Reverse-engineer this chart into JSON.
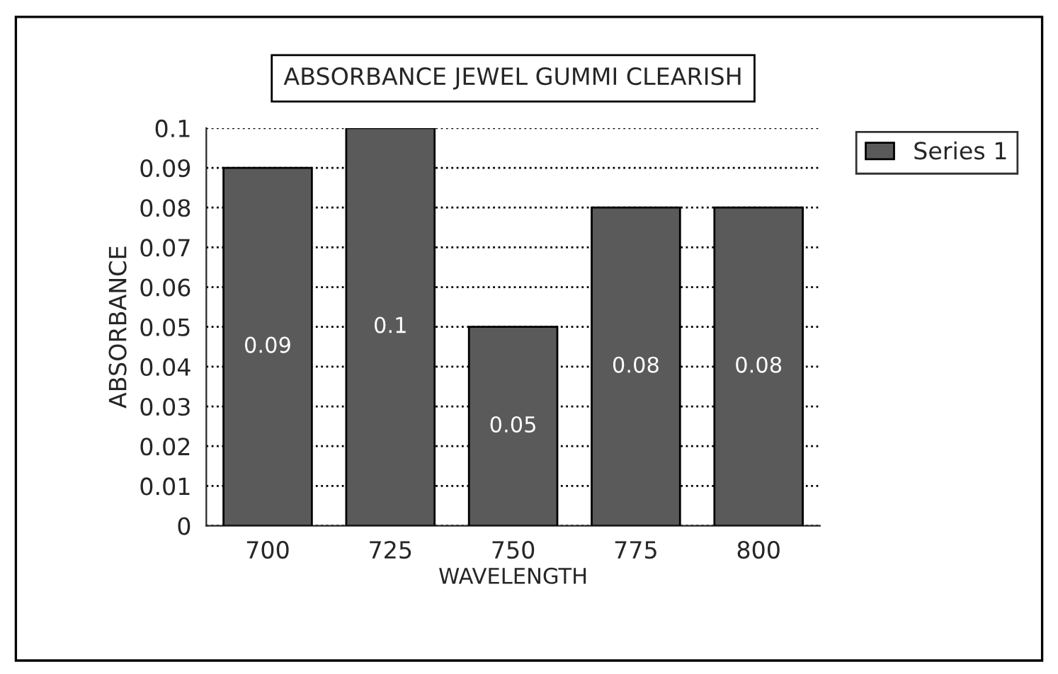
{
  "chart_data": {
    "type": "bar",
    "title": "ABSORBANCE JEWEL GUMMI CLEARISH",
    "xlabel": "WAVELENGTH",
    "ylabel": "ABSORBANCE",
    "categories": [
      "700",
      "725",
      "750",
      "775",
      "800"
    ],
    "series": [
      {
        "name": "Series 1",
        "color": "#5a5a5a",
        "values": [
          0.09,
          0.1,
          0.05,
          0.08,
          0.08
        ]
      }
    ],
    "ylim": [
      0,
      0.1
    ],
    "yticks": [
      0,
      0.01,
      0.02,
      0.03,
      0.04,
      0.05,
      0.06,
      0.07,
      0.08,
      0.09,
      0.1
    ],
    "grid": "y",
    "legend": "right",
    "data_labels": true
  }
}
